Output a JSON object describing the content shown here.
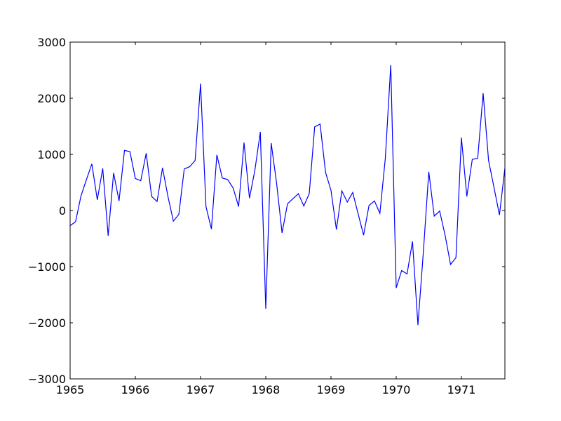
{
  "chart_data": {
    "type": "line",
    "title": "",
    "xlabel": "",
    "ylabel": "",
    "grid": false,
    "xlim": [
      1965.0,
      1971.667
    ],
    "ylim": [
      -3000,
      3000
    ],
    "x_ticks": [
      1965,
      1966,
      1967,
      1968,
      1969,
      1970,
      1971
    ],
    "x_tick_labels": [
      "1965",
      "1966",
      "1967",
      "1968",
      "1969",
      "1970",
      "1971"
    ],
    "y_ticks": [
      -3000,
      -2000,
      -1000,
      0,
      1000,
      2000,
      3000
    ],
    "y_tick_labels": [
      "−3000",
      "−2000",
      "−1000",
      "0",
      "1000",
      "2000",
      "3000"
    ],
    "line_color": "#0000ff",
    "series": [
      {
        "start_year": 1965,
        "start_month": 1,
        "frequency": "monthly",
        "values": [
          -270,
          -200,
          260,
          550,
          830,
          190,
          750,
          -450,
          670,
          170,
          1070,
          1050,
          570,
          530,
          1020,
          250,
          160,
          760,
          250,
          -190,
          -70,
          740,
          780,
          890,
          2260,
          70,
          -330,
          990,
          580,
          550,
          400,
          70,
          1210,
          220,
          720,
          1400,
          -1750,
          1200,
          480,
          -400,
          120,
          210,
          300,
          80,
          300,
          1490,
          1540,
          680,
          360,
          -340,
          350,
          150,
          320,
          -60,
          -440,
          90,
          170,
          -50,
          930,
          2590,
          -1380,
          -1070,
          -1130,
          -550,
          -2040,
          -740,
          690,
          -100,
          -10,
          -440,
          -960,
          -840,
          1300,
          250,
          910,
          930,
          2090,
          890,
          410,
          -80,
          750
        ]
      }
    ]
  }
}
